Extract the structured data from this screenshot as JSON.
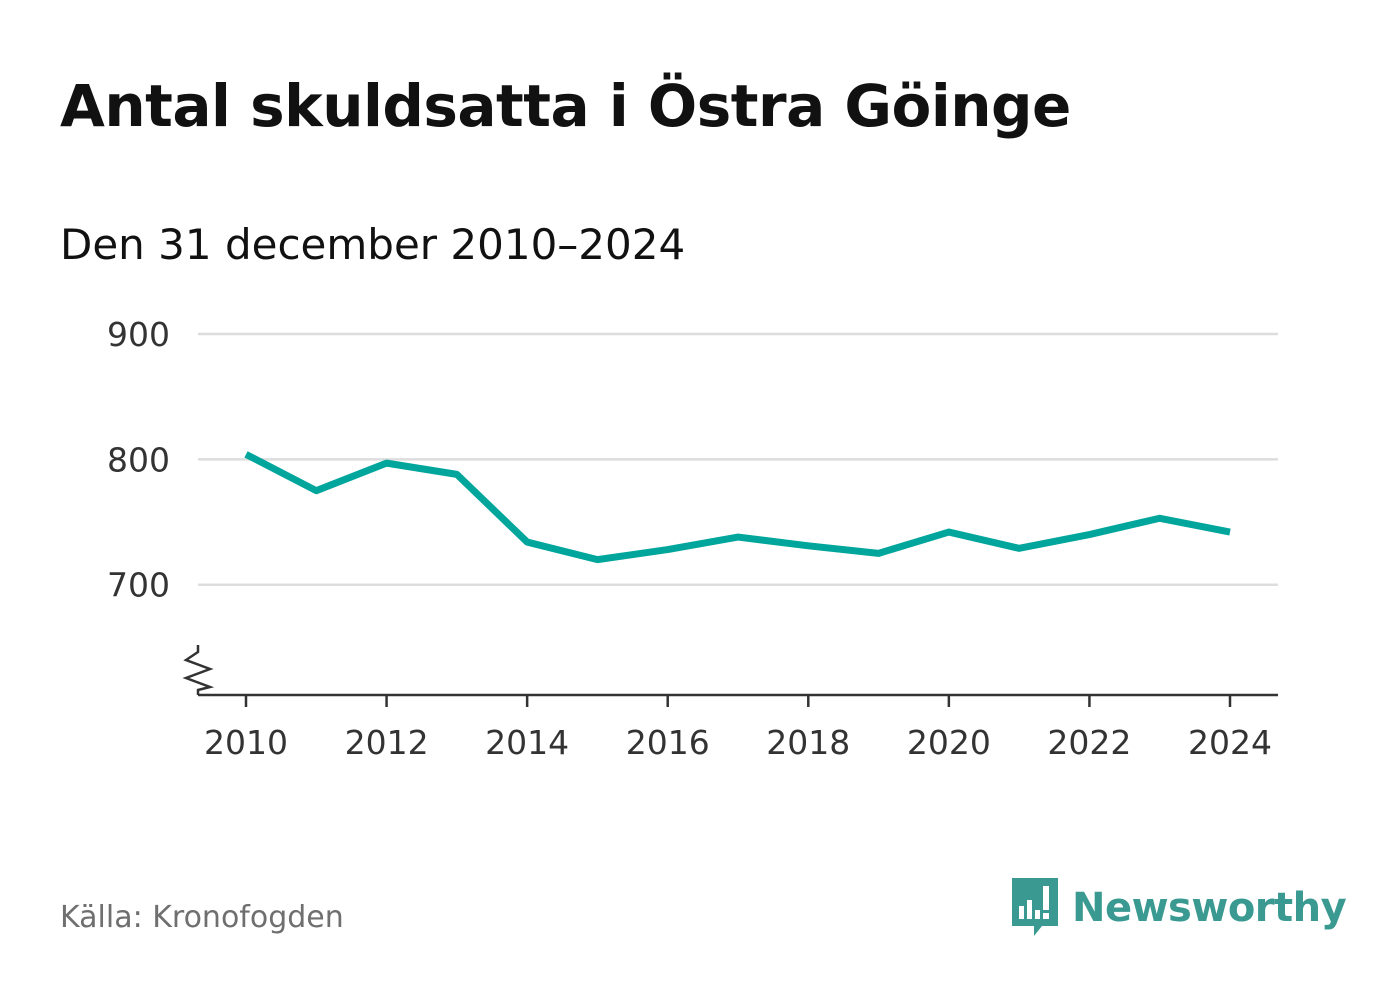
{
  "title": "Antal skuldsatta i Östra Göinge",
  "subtitle": "Den 31 december 2010–2024",
  "source": "Källa: Kronofogden",
  "brand": {
    "name": "Newsworthy",
    "icon": "newsworthy-logo-icon",
    "color": "#3a9a91"
  },
  "colors": {
    "line": "#00a69c",
    "grid": "#dddddd",
    "axis": "#333333",
    "tick_text": "#333333"
  },
  "chart_data": {
    "type": "line",
    "title": "Antal skuldsatta i Östra Göinge",
    "subtitle": "Den 31 december 2010–2024",
    "xlabel": "",
    "ylabel": "",
    "x": [
      2010,
      2011,
      2012,
      2013,
      2014,
      2015,
      2016,
      2017,
      2018,
      2019,
      2020,
      2021,
      2022,
      2023,
      2024
    ],
    "series": [
      {
        "values": [
          804,
          775,
          797,
          788,
          734,
          720,
          728,
          738,
          731,
          725,
          742,
          729,
          740,
          753,
          742
        ]
      }
    ],
    "x_ticks": [
      "2010",
      "2012",
      "2014",
      "2016",
      "2018",
      "2020",
      "2022",
      "2024"
    ],
    "y_ticks": [
      "700",
      "800",
      "900"
    ],
    "ylim": [
      612,
      900
    ],
    "y_axis_break": true,
    "grid": true,
    "legend": "none"
  }
}
